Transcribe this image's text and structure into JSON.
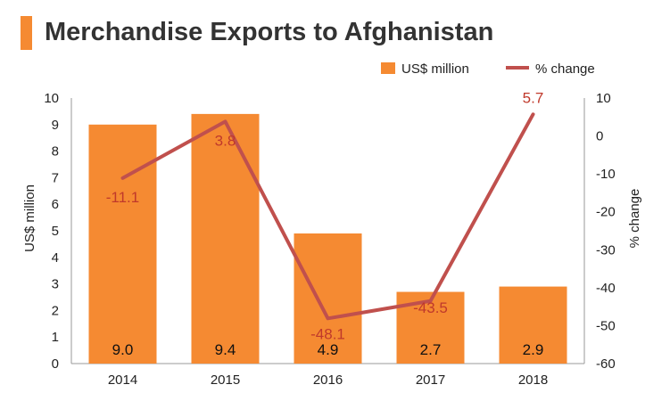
{
  "title": "Merchandise Exports to Afghanistan",
  "colors": {
    "accent": "#F58A32",
    "bar": "#F58A32",
    "line": "#C0504D",
    "pct_label": "#C0392B",
    "axis": "#999999"
  },
  "legend": {
    "bar_label": "US$ million",
    "line_label": "% change"
  },
  "chart_data": {
    "type": "bar",
    "categories": [
      "2014",
      "2015",
      "2016",
      "2017",
      "2018"
    ],
    "series": [
      {
        "name": "US$ million",
        "type": "bar",
        "axis": "left",
        "values": [
          9.0,
          9.4,
          4.9,
          2.7,
          2.9
        ],
        "labels": [
          "9.0",
          "9.4",
          "4.9",
          "2.7",
          "2.9"
        ]
      },
      {
        "name": "% change",
        "type": "line",
        "axis": "right",
        "values": [
          -11.1,
          3.8,
          -48.1,
          -43.5,
          5.7
        ],
        "labels": [
          "-11.1",
          "3.8",
          "-48.1",
          "-43.5",
          "5.7"
        ]
      }
    ],
    "ylabel": "US$ million",
    "ylim": [
      0,
      10
    ],
    "yticks": [
      "0",
      "1",
      "2",
      "3",
      "4",
      "5",
      "6",
      "7",
      "8",
      "9",
      "10"
    ],
    "y2label": "% change",
    "y2lim": [
      -60,
      10
    ],
    "y2ticks": [
      "10",
      "0",
      "-10",
      "-20",
      "-30",
      "-40",
      "-50",
      "-60"
    ],
    "grid": false,
    "legend_position": "top-right"
  }
}
